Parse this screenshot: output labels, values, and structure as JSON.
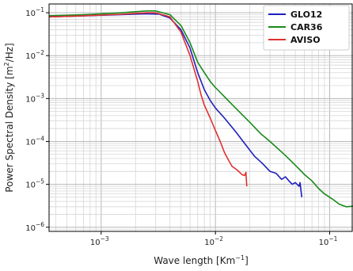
{
  "chart_data": {
    "type": "line",
    "title": "",
    "xlabel": "Wave length [Km",
    "xlabel_sup": "−1",
    "xlabel_end": "]",
    "ylabel": "Power Spectral Density [m",
    "ylabel_sup": "2",
    "ylabel_end": "/Hz]",
    "x_scale": "log",
    "y_scale": "log",
    "xlim": [
      0.00035,
      0.16
    ],
    "ylim": [
      8e-07,
      0.16
    ],
    "grid": true,
    "legend_position": "top-right",
    "x_ticks": [
      {
        "value": 0.001,
        "base": "10",
        "exp": "−3"
      },
      {
        "value": 0.01,
        "base": "10",
        "exp": "−2"
      },
      {
        "value": 0.1,
        "base": "10",
        "exp": "−1"
      }
    ],
    "y_ticks": [
      {
        "value": 0.1,
        "base": "10",
        "exp": "−1"
      },
      {
        "value": 0.01,
        "base": "10",
        "exp": "−2"
      },
      {
        "value": 0.001,
        "base": "10",
        "exp": "−3"
      },
      {
        "value": 0.0001,
        "base": "10",
        "exp": "−4"
      },
      {
        "value": 1e-05,
        "base": "10",
        "exp": "−5"
      },
      {
        "value": 1e-06,
        "base": "10",
        "exp": "−6"
      }
    ],
    "series": [
      {
        "name": "GLO12",
        "color": "#1f1fbf",
        "x": [
          0.00035,
          0.0007,
          0.0015,
          0.0025,
          0.0032,
          0.004,
          0.005,
          0.006,
          0.007,
          0.008,
          0.009,
          0.01,
          0.012,
          0.015,
          0.018,
          0.022,
          0.026,
          0.03,
          0.034,
          0.038,
          0.041,
          0.044,
          0.047,
          0.05,
          0.054,
          0.055,
          0.057
        ],
        "y": [
          0.08,
          0.085,
          0.09,
          0.095,
          0.093,
          0.075,
          0.04,
          0.015,
          0.004,
          0.0016,
          0.0009,
          0.0006,
          0.00035,
          0.00017,
          9e-05,
          4.5e-05,
          3e-05,
          2e-05,
          1.8e-05,
          1.3e-05,
          1.5e-05,
          1.2e-05,
          1e-05,
          1.1e-05,
          9e-06,
          1.1e-05,
          5e-06
        ]
      },
      {
        "name": "CAR36",
        "color": "#1a8a1a",
        "x": [
          0.00035,
          0.0007,
          0.0015,
          0.0025,
          0.003,
          0.004,
          0.005,
          0.006,
          0.007,
          0.008,
          0.009,
          0.01,
          0.012,
          0.015,
          0.02,
          0.025,
          0.03,
          0.04,
          0.05,
          0.06,
          0.07,
          0.08,
          0.09,
          0.1,
          0.11,
          0.12,
          0.13,
          0.14,
          0.16
        ],
        "y": [
          0.085,
          0.09,
          0.1,
          0.11,
          0.11,
          0.09,
          0.05,
          0.02,
          0.007,
          0.004,
          0.0025,
          0.0018,
          0.0011,
          0.0006,
          0.00028,
          0.00015,
          0.0001,
          5e-05,
          2.8e-05,
          1.7e-05,
          1.2e-05,
          8e-06,
          6e-06,
          5e-06,
          4.2e-06,
          3.5e-06,
          3.2e-06,
          3e-06,
          3.1e-06
        ]
      },
      {
        "name": "AVISO",
        "color": "#e03030",
        "x": [
          0.00035,
          0.0007,
          0.0015,
          0.0025,
          0.003,
          0.004,
          0.005,
          0.006,
          0.007,
          0.0075,
          0.008,
          0.009,
          0.01,
          0.011,
          0.012,
          0.013,
          0.014,
          0.015,
          0.016,
          0.017,
          0.018,
          0.0185,
          0.0188
        ],
        "y": [
          0.08,
          0.085,
          0.092,
          0.1,
          0.1,
          0.08,
          0.035,
          0.01,
          0.0025,
          0.0012,
          0.0007,
          0.00035,
          0.00018,
          0.0001,
          5.5e-05,
          3.7e-05,
          2.6e-05,
          2.3e-05,
          2e-05,
          1.7e-05,
          1.6e-05,
          1.9e-05,
          9e-06
        ]
      }
    ]
  }
}
